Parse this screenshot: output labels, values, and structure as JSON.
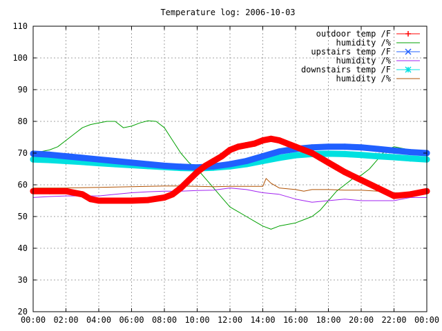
{
  "chart_data": {
    "type": "line",
    "title": "Temperature log: 2006-10-03",
    "xlabel": "",
    "ylabel": "",
    "xlim": [
      0,
      24
    ],
    "ylim": [
      20,
      110
    ],
    "x_ticks": [
      "00:00",
      "02:00",
      "04:00",
      "06:00",
      "08:00",
      "10:00",
      "12:00",
      "14:00",
      "16:00",
      "18:00",
      "20:00",
      "22:00",
      "00:00"
    ],
    "y_ticks": [
      20,
      30,
      40,
      50,
      60,
      70,
      80,
      90,
      100,
      110
    ],
    "grid": true,
    "legend_position": "top-right",
    "x_unit": "hours",
    "series": [
      {
        "name": "outdoor temp /F",
        "color": "#ff0000",
        "marker": "plus",
        "x": [
          0,
          1,
          2,
          3,
          3.5,
          4,
          5,
          6,
          7,
          8,
          8.5,
          9,
          9.5,
          10,
          10.5,
          11,
          11.5,
          12,
          12.5,
          13,
          13.5,
          14,
          14.5,
          15,
          15.5,
          16,
          16.5,
          17,
          17.5,
          18,
          18.5,
          19,
          20,
          21,
          22,
          23,
          24
        ],
        "values": [
          58,
          58,
          58,
          57,
          55.5,
          55,
          55,
          55,
          55.2,
          56,
          57,
          59,
          61.5,
          64,
          66,
          67.5,
          69,
          71,
          72,
          72.5,
          73,
          74,
          74.5,
          74,
          73,
          72,
          71,
          70,
          68.5,
          67,
          65.5,
          64,
          61.5,
          59,
          56.5,
          57,
          58
        ]
      },
      {
        "name": "humidity /%",
        "color": "#00a000",
        "x": [
          0,
          0.5,
          1,
          1.5,
          2,
          2.5,
          3,
          3.5,
          4,
          4.5,
          5,
          5.5,
          6,
          6.5,
          7,
          7.5,
          8,
          8.5,
          9,
          9.5,
          10,
          10.5,
          11,
          11.5,
          12,
          12.5,
          13,
          13.5,
          14,
          14.5,
          15,
          15.5,
          16,
          16.5,
          17,
          17.5,
          18,
          18.5,
          19,
          19.5,
          20,
          20.5,
          21,
          21.5,
          22,
          22.5,
          23,
          23.5,
          24
        ],
        "values": [
          70,
          70.5,
          71,
          72,
          74,
          76,
          78,
          79,
          79.5,
          80,
          80,
          78,
          78.5,
          79.5,
          80.2,
          80,
          78,
          74,
          70,
          67,
          65,
          62,
          59,
          56,
          53,
          51.5,
          50,
          48.5,
          47,
          46,
          47,
          47.5,
          48,
          49,
          50,
          52,
          55,
          58,
          60,
          62,
          63,
          65,
          68,
          71,
          72,
          71.5,
          71,
          70,
          70
        ]
      },
      {
        "name": "upstairs temp /F",
        "color": "#2060ff",
        "marker": "x",
        "x": [
          0,
          1,
          2,
          3,
          4,
          5,
          6,
          7,
          8,
          9,
          10,
          11,
          12,
          13,
          14,
          15,
          16,
          17,
          18,
          19,
          20,
          21,
          22,
          23,
          24
        ],
        "values": [
          69.8,
          69.5,
          69,
          68.5,
          68,
          67.5,
          67,
          66.5,
          66,
          65.7,
          65.5,
          65.8,
          66.5,
          67.5,
          69,
          70.5,
          71.3,
          71.8,
          72,
          72,
          71.8,
          71.3,
          70.8,
          70.3,
          70
        ]
      },
      {
        "name": "humidity /%",
        "color": "#a020f0",
        "x": [
          0,
          1,
          2,
          3,
          4,
          5,
          6,
          7,
          8,
          9,
          10,
          11,
          12,
          13,
          14,
          15,
          16,
          17,
          18,
          19,
          20,
          21,
          22,
          23,
          24
        ],
        "values": [
          56,
          56.3,
          56.5,
          56.5,
          56.5,
          57,
          57.5,
          57.8,
          58,
          58,
          58.2,
          58.3,
          59,
          58.5,
          57.5,
          57,
          55.5,
          54.5,
          55,
          55.5,
          55,
          55,
          55,
          56,
          56
        ]
      },
      {
        "name": "downstairs temp /F",
        "color": "#00e0e0",
        "marker": "star",
        "x": [
          0,
          1,
          2,
          3,
          4,
          5,
          6,
          7,
          8,
          9,
          10,
          11,
          12,
          13,
          14,
          15,
          16,
          17,
          18,
          19,
          20,
          21,
          22,
          23,
          24
        ],
        "values": [
          68,
          67.8,
          67.5,
          67.2,
          66.8,
          66.5,
          66.2,
          65.9,
          65.6,
          65.3,
          65.2,
          65.4,
          65.8,
          66.5,
          67.5,
          68.5,
          69.3,
          69.7,
          69.8,
          69.7,
          69.4,
          69,
          68.7,
          68.3,
          68
        ]
      },
      {
        "name": "humidity /%",
        "color": "#b05000",
        "x": [
          0,
          1,
          2,
          3,
          4,
          5,
          6,
          7,
          8,
          9,
          10,
          11,
          12,
          13,
          14,
          14.2,
          14.5,
          15,
          16,
          16.5,
          17,
          18,
          19,
          20,
          21,
          22,
          23,
          24
        ],
        "values": [
          59,
          59,
          59,
          59.1,
          59.2,
          59.3,
          59.4,
          59.5,
          59.6,
          59.6,
          59.5,
          59.4,
          59.5,
          59.5,
          59.5,
          62,
          60.5,
          59,
          58.5,
          58,
          58.5,
          58.5,
          58.3,
          58.3,
          58,
          57.5,
          57.5,
          57.5
        ]
      }
    ]
  }
}
